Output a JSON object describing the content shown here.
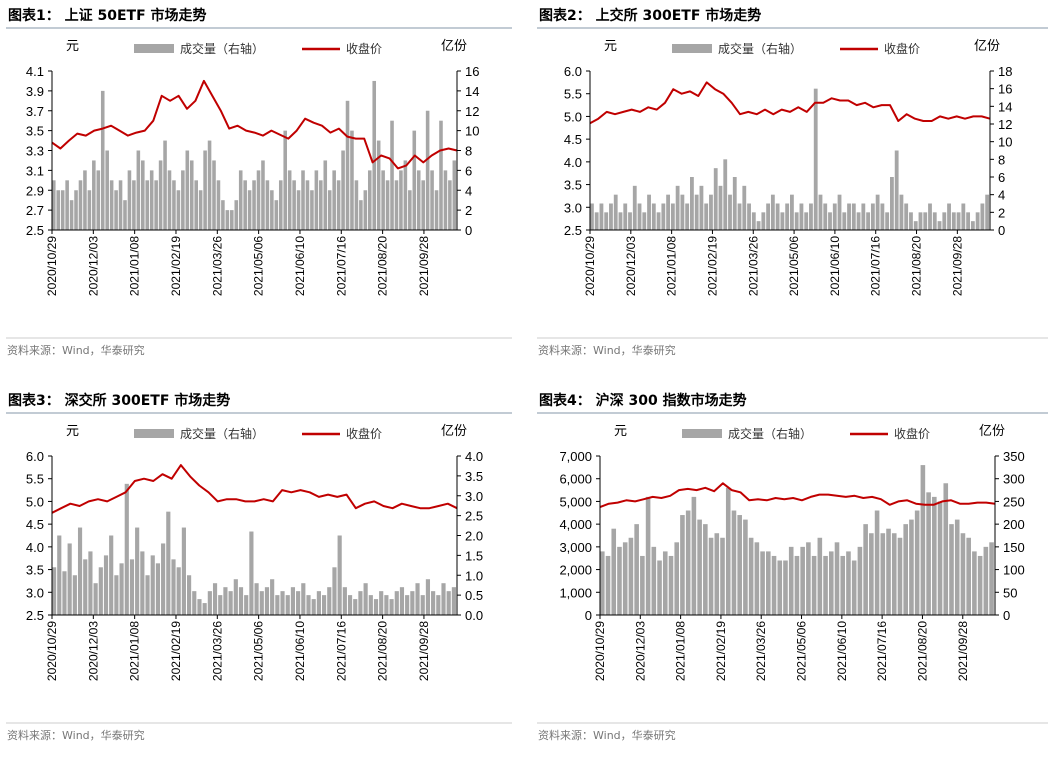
{
  "colors": {
    "bar": "#a6a6a6",
    "line": "#c00000",
    "rule": "#8497a8"
  },
  "chart_data": [
    {
      "type": "bar+line",
      "title": "图表1：  上证 50ETF 市场走势",
      "legend": {
        "bar": "成交量（右轴）",
        "line": "收盘价",
        "placement": "top"
      },
      "ylabel_left": "元",
      "ylabel_right": "亿份",
      "ylim_left": [
        2.5,
        4.1
      ],
      "yticks_left": [
        "4.1",
        "3.9",
        "3.7",
        "3.5",
        "3.3",
        "3.1",
        "2.9",
        "2.7",
        "2.5"
      ],
      "ylim_right": [
        0,
        16
      ],
      "yticks_right": [
        "16",
        "14",
        "12",
        "10",
        "8",
        "6",
        "4",
        "2",
        "0"
      ],
      "x_ticks": [
        "2020/10/29",
        "2020/12/03",
        "2021/01/08",
        "2021/02/19",
        "2021/03/26",
        "2021/05/06",
        "2021/06/10",
        "2021/07/16",
        "2021/08/20",
        "2021/09/28"
      ],
      "price": [
        3.38,
        3.32,
        3.4,
        3.47,
        3.45,
        3.5,
        3.52,
        3.55,
        3.5,
        3.45,
        3.48,
        3.5,
        3.6,
        3.85,
        3.8,
        3.85,
        3.72,
        3.8,
        4.0,
        3.85,
        3.7,
        3.52,
        3.55,
        3.5,
        3.48,
        3.45,
        3.5,
        3.46,
        3.42,
        3.5,
        3.62,
        3.58,
        3.55,
        3.48,
        3.52,
        3.44,
        3.42,
        3.42,
        3.18,
        3.25,
        3.22,
        3.12,
        3.15,
        3.25,
        3.18,
        3.25,
        3.3,
        3.32,
        3.3
      ],
      "volume": [
        5,
        4,
        4,
        5,
        3,
        4,
        5,
        6,
        4,
        7,
        6,
        14,
        8,
        5,
        4,
        5,
        3,
        6,
        5,
        8,
        7,
        5,
        6,
        5,
        7,
        9,
        6,
        5,
        4,
        6,
        8,
        7,
        5,
        4,
        8,
        9,
        7,
        5,
        3,
        2,
        2,
        3,
        6,
        5,
        4,
        5,
        6,
        7,
        5,
        4,
        3,
        5,
        10,
        6,
        5,
        4,
        6,
        5,
        4,
        6,
        5,
        7,
        4,
        6,
        5,
        8,
        13,
        10,
        5,
        3,
        4,
        6,
        15,
        9,
        6,
        5,
        11,
        5,
        6,
        7,
        4,
        10,
        6,
        5,
        12,
        6,
        4,
        11,
        6,
        5,
        7
      ],
      "source": "资料来源：Wind，华泰研究"
    },
    {
      "type": "bar+line",
      "title": "图表2：  上交所 300ETF 市场走势",
      "legend": {
        "bar": "成交量（右轴）",
        "line": "收盘价",
        "placement": "top"
      },
      "ylabel_left": "元",
      "ylabel_right": "亿份",
      "ylim_left": [
        2.5,
        6.0
      ],
      "yticks_left": [
        "6.0",
        "5.5",
        "5.0",
        "4.5",
        "4.0",
        "3.5",
        "3.0",
        "2.5"
      ],
      "ylim_right": [
        0,
        18
      ],
      "yticks_right": [
        "18",
        "16",
        "14",
        "12",
        "10",
        "8",
        "6",
        "4",
        "2",
        "0"
      ],
      "x_ticks": [
        "2020/10/29",
        "2020/12/03",
        "2021/01/08",
        "2021/02/19",
        "2021/03/26",
        "2021/05/06",
        "2021/06/10",
        "2021/07/16",
        "2021/08/20",
        "2021/09/28"
      ],
      "price": [
        4.85,
        4.95,
        5.1,
        5.05,
        5.1,
        5.15,
        5.1,
        5.2,
        5.15,
        5.3,
        5.6,
        5.5,
        5.55,
        5.45,
        5.75,
        5.6,
        5.5,
        5.3,
        5.05,
        5.1,
        5.05,
        5.15,
        5.05,
        5.15,
        5.1,
        5.2,
        5.1,
        5.3,
        5.3,
        5.4,
        5.35,
        5.35,
        5.25,
        5.3,
        5.2,
        5.25,
        5.25,
        4.9,
        5.05,
        4.95,
        4.9,
        4.9,
        5.0,
        4.95,
        5.0,
        4.95,
        5.0,
        5.0,
        4.95
      ],
      "volume": [
        3,
        2,
        3,
        2,
        3,
        4,
        2,
        3,
        2,
        5,
        3,
        2,
        4,
        3,
        2,
        3,
        4,
        3,
        5,
        4,
        3,
        6,
        4,
        5,
        3,
        4,
        7,
        5,
        8,
        4,
        6,
        3,
        5,
        3,
        2,
        1,
        2,
        3,
        4,
        3,
        2,
        3,
        4,
        2,
        3,
        2,
        3,
        16,
        4,
        3,
        2,
        3,
        4,
        2,
        3,
        3,
        2,
        3,
        2,
        3,
        4,
        3,
        2,
        6,
        9,
        4,
        3,
        2,
        1,
        2,
        2,
        3,
        2,
        1,
        2,
        3,
        2,
        2,
        3,
        2,
        1,
        2,
        3,
        4
      ],
      "source": "资料来源：Wind，华泰研究"
    },
    {
      "type": "bar+line",
      "title": "图表3：  深交所 300ETF 市场走势",
      "legend": {
        "bar": "成交量（右轴）",
        "line": "收盘价",
        "placement": "top"
      },
      "ylabel_left": "元",
      "ylabel_right": "亿份",
      "ylim_left": [
        2.5,
        6.0
      ],
      "yticks_left": [
        "6.0",
        "5.5",
        "5.0",
        "4.5",
        "4.0",
        "3.5",
        "3.0",
        "2.5"
      ],
      "ylim_right": [
        0,
        4.0
      ],
      "yticks_right": [
        "4.0",
        "3.5",
        "3.0",
        "2.5",
        "2.0",
        "1.5",
        "1.0",
        "0.5",
        "0.0"
      ],
      "x_ticks": [
        "2020/10/29",
        "2020/12/03",
        "2021/01/08",
        "2021/02/19",
        "2021/03/26",
        "2021/05/06",
        "2021/06/10",
        "2021/07/16",
        "2021/08/20",
        "2021/09/28"
      ],
      "price": [
        4.75,
        4.85,
        4.95,
        4.9,
        5.0,
        5.05,
        5.0,
        5.1,
        5.2,
        5.45,
        5.5,
        5.45,
        5.6,
        5.5,
        5.8,
        5.55,
        5.35,
        5.2,
        5.0,
        5.05,
        5.05,
        5.0,
        5.0,
        5.05,
        5.0,
        5.25,
        5.2,
        5.25,
        5.2,
        5.1,
        5.15,
        5.1,
        5.15,
        4.85,
        4.95,
        5.0,
        4.9,
        4.85,
        4.95,
        4.9,
        4.85,
        4.85,
        4.9,
        4.95,
        4.85
      ],
      "volume": [
        1.2,
        2.0,
        1.1,
        1.8,
        1.0,
        2.2,
        1.4,
        1.6,
        0.8,
        1.2,
        1.5,
        2.0,
        1.0,
        1.3,
        3.3,
        1.4,
        2.2,
        1.6,
        1.0,
        1.5,
        1.3,
        1.8,
        2.6,
        1.4,
        1.2,
        2.2,
        1.0,
        0.6,
        0.4,
        0.3,
        0.6,
        0.8,
        0.5,
        0.7,
        0.6,
        0.9,
        0.7,
        0.5,
        2.1,
        0.8,
        0.6,
        0.7,
        0.9,
        0.5,
        0.6,
        0.5,
        0.7,
        0.6,
        0.8,
        0.5,
        0.4,
        0.6,
        0.5,
        0.7,
        1.2,
        2.0,
        0.7,
        0.5,
        0.4,
        0.6,
        0.8,
        0.5,
        0.4,
        0.6,
        0.5,
        0.4,
        0.6,
        0.7,
        0.5,
        0.6,
        0.8,
        0.5,
        0.9,
        0.6,
        0.5,
        0.8,
        0.6,
        0.7
      ],
      "source": "资料来源：Wind，华泰研究"
    },
    {
      "type": "bar+line",
      "title": "图表4：  沪深 300 指数市场走势",
      "legend": {
        "bar": "成交量（右轴）",
        "line": "收盘价",
        "placement": "top"
      },
      "ylabel_left": "元",
      "ylabel_right": "亿份",
      "ylim_left": [
        0,
        7000
      ],
      "yticks_left": [
        "7,000",
        "6,000",
        "5,000",
        "4,000",
        "3,000",
        "2,000",
        "1,000",
        "0"
      ],
      "ylim_right": [
        0,
        350
      ],
      "yticks_right": [
        "350",
        "300",
        "250",
        "200",
        "150",
        "100",
        "50",
        "0"
      ],
      "x_ticks": [
        "2020/10/29",
        "2020/12/03",
        "2021/01/08",
        "2021/02/19",
        "2021/03/26",
        "2021/05/06",
        "2021/06/10",
        "2021/07/16",
        "2021/08/20",
        "2021/09/28"
      ],
      "price": [
        4750,
        4900,
        4950,
        5050,
        5000,
        5100,
        5200,
        5150,
        5250,
        5500,
        5550,
        5500,
        5600,
        5450,
        5800,
        5500,
        5400,
        5050,
        5100,
        5050,
        5150,
        5100,
        5150,
        5050,
        5200,
        5300,
        5300,
        5250,
        5200,
        5250,
        5150,
        5200,
        5100,
        4850,
        5000,
        5050,
        4900,
        4850,
        4850,
        5000,
        5050,
        4900,
        4900,
        4950,
        4950,
        4900
      ],
      "volume": [
        140,
        130,
        190,
        150,
        160,
        170,
        200,
        130,
        260,
        150,
        120,
        140,
        130,
        160,
        220,
        230,
        260,
        210,
        200,
        170,
        180,
        170,
        280,
        230,
        220,
        210,
        170,
        160,
        140,
        140,
        130,
        120,
        120,
        150,
        130,
        150,
        160,
        130,
        170,
        130,
        140,
        160,
        130,
        140,
        120,
        150,
        200,
        180,
        230,
        180,
        190,
        180,
        170,
        200,
        210,
        230,
        330,
        270,
        260,
        250,
        290,
        200,
        210,
        180,
        170,
        140,
        130,
        150,
        160
      ],
      "source": "资料来源：Wind，华泰研究"
    }
  ]
}
